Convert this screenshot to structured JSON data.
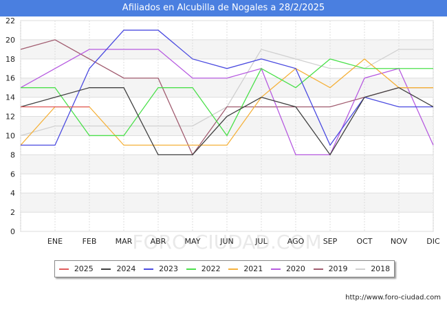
{
  "chart_data": {
    "type": "line",
    "title": "Afiliados en Alcubilla de Nogales a 28/2/2025",
    "categories": [
      "",
      "ENE",
      "FEB",
      "MAR",
      "ABR",
      "MAY",
      "JUN",
      "JUL",
      "AGO",
      "SEP",
      "OCT",
      "NOV",
      "DIC"
    ],
    "ylim": [
      0,
      22
    ],
    "yticks": [
      0,
      2,
      4,
      6,
      8,
      10,
      12,
      14,
      16,
      18,
      20,
      22
    ],
    "grid": true,
    "legend_position": "bottom",
    "series": [
      {
        "name": "2018",
        "color": "#d0d0d0",
        "values": [
          10,
          11,
          11,
          11,
          11,
          11,
          13,
          19,
          18,
          17,
          17,
          19,
          19
        ]
      },
      {
        "name": "2019",
        "color": "#a05a6e",
        "values": [
          19,
          20,
          18,
          16,
          16,
          8,
          13,
          13,
          13,
          13,
          14,
          15,
          15
        ]
      },
      {
        "name": "2020",
        "color": "#b65ae0",
        "values": [
          15,
          17,
          19,
          19,
          19,
          16,
          16,
          17,
          8,
          8,
          16,
          17,
          9
        ]
      },
      {
        "name": "2021",
        "color": "#f5b13a",
        "values": [
          9,
          13,
          13,
          9,
          9,
          9,
          9,
          14,
          17,
          15,
          18,
          15,
          15
        ]
      },
      {
        "name": "2022",
        "color": "#4ae04a",
        "values": [
          15,
          15,
          10,
          10,
          15,
          15,
          10,
          17,
          15,
          18,
          17,
          17,
          17
        ]
      },
      {
        "name": "2023",
        "color": "#4a4ae0",
        "values": [
          9,
          9,
          17,
          21,
          21,
          18,
          17,
          18,
          17,
          9,
          14,
          13,
          13
        ]
      },
      {
        "name": "2024",
        "color": "#404040",
        "values": [
          13,
          14,
          15,
          15,
          8,
          8,
          12,
          14,
          13,
          8,
          14,
          15,
          13
        ]
      },
      {
        "name": "2025",
        "color": "#e05a5a",
        "values": [
          13,
          13,
          13,
          null,
          null,
          null,
          null,
          null,
          null,
          null,
          null,
          null,
          null
        ]
      }
    ],
    "legend_order": [
      "2025",
      "2024",
      "2023",
      "2022",
      "2021",
      "2020",
      "2019",
      "2018"
    ]
  },
  "watermark": "FORO-CIUDAD.COM",
  "source": "http://www.foro-ciudad.com"
}
